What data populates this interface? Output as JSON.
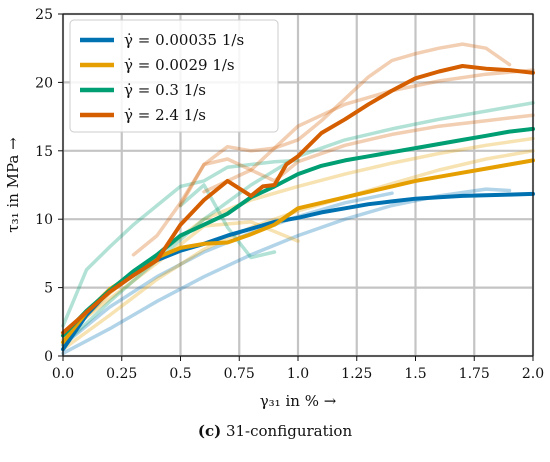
{
  "caption": {
    "letter": "(c)",
    "text": "31-configuration"
  },
  "chart_data": {
    "type": "line",
    "title": "",
    "xlabel": "γ₃₁ in % →",
    "ylabel": "τ₃₁ in MPa →",
    "xlim": [
      0,
      2.0
    ],
    "ylim": [
      0,
      25
    ],
    "xticks": [
      0.0,
      0.25,
      0.5,
      0.75,
      1.0,
      1.25,
      1.5,
      1.75,
      2.0
    ],
    "xtick_labels": [
      "0.0",
      "0.25",
      "0.5",
      "0.75",
      "1.0",
      "1.25",
      "1.5",
      "1.75",
      "2.0"
    ],
    "yticks": [
      0,
      5,
      10,
      15,
      20,
      25
    ],
    "ytick_labels": [
      "0",
      "5",
      "10",
      "15",
      "20",
      "25"
    ],
    "grid": true,
    "legend_position": "top-left",
    "series": [
      {
        "name": "γ̇ = 0.00035 1/s",
        "color": "#0072b2",
        "x": [
          0,
          0.1,
          0.2,
          0.3,
          0.4,
          0.5,
          0.6,
          0.7,
          0.8,
          0.9,
          1.0,
          1.1,
          1.2,
          1.3,
          1.4,
          1.5,
          1.6,
          1.7,
          1.8,
          1.9,
          2.0
        ],
        "y": [
          0.5,
          3.0,
          4.8,
          6.0,
          7.0,
          7.7,
          8.2,
          8.8,
          9.3,
          9.8,
          10.1,
          10.5,
          10.8,
          11.1,
          11.3,
          11.5,
          11.6,
          11.7,
          11.75,
          11.8,
          11.85
        ],
        "replicates": [
          {
            "x": [
              0,
              0.2,
              0.4,
              0.6,
              0.8,
              1.0,
              1.2,
              1.4,
              1.6,
              1.8,
              1.9
            ],
            "y": [
              0.2,
              2.0,
              4.0,
              5.8,
              7.4,
              8.8,
              10.0,
              11.0,
              11.7,
              12.2,
              12.1
            ]
          },
          {
            "x": [
              0,
              0.2,
              0.4,
              0.6,
              0.8,
              1.0,
              1.2,
              1.4
            ],
            "y": [
              0.8,
              3.6,
              5.8,
              7.6,
              9.0,
              10.2,
              11.2,
              11.9
            ]
          }
        ]
      },
      {
        "name": "γ̇ = 0.0029 1/s",
        "color": "#e69f00",
        "x": [
          0,
          0.1,
          0.2,
          0.3,
          0.4,
          0.5,
          0.6,
          0.7,
          0.8,
          0.9,
          1.0,
          1.1,
          1.2,
          1.3,
          1.4,
          1.5,
          1.6,
          1.7,
          1.8,
          1.9,
          2.0
        ],
        "y": [
          1.0,
          3.2,
          4.9,
          6.0,
          7.2,
          7.9,
          8.2,
          8.3,
          8.9,
          9.6,
          10.8,
          11.2,
          11.6,
          12.0,
          12.4,
          12.8,
          13.1,
          13.4,
          13.7,
          14.0,
          14.3
        ],
        "replicates": [
          {
            "x": [
              0,
              0.2,
              0.4,
              0.6,
              0.8,
              1.0,
              1.2,
              1.4,
              1.6,
              1.8,
              2.0
            ],
            "y": [
              1.2,
              4.6,
              7.4,
              10.0,
              11.4,
              12.4,
              13.3,
              14.1,
              14.8,
              15.4,
              15.9
            ]
          },
          {
            "x": [
              0,
              0.2,
              0.4,
              0.6,
              0.8,
              1.0
            ],
            "y": [
              1.5,
              4.2,
              6.8,
              9.5,
              9.8,
              8.4
            ]
          },
          {
            "x": [
              0,
              0.2,
              0.4,
              0.6,
              0.8,
              1.0,
              1.2,
              1.4,
              1.6,
              1.8,
              2.0
            ],
            "y": [
              0.5,
              3.0,
              5.6,
              7.8,
              9.4,
              10.6,
              11.6,
              12.6,
              13.6,
              14.4,
              15.0
            ]
          }
        ]
      },
      {
        "name": "γ̇ = 0.3 1/s",
        "color": "#009e73",
        "x": [
          0,
          0.1,
          0.2,
          0.3,
          0.4,
          0.5,
          0.6,
          0.7,
          0.8,
          0.9,
          1.0,
          1.1,
          1.2,
          1.3,
          1.4,
          1.5,
          1.6,
          1.7,
          1.8,
          1.9,
          2.0
        ],
        "y": [
          1.5,
          3.3,
          4.8,
          6.2,
          7.4,
          8.8,
          9.6,
          10.4,
          11.6,
          12.4,
          13.3,
          13.9,
          14.3,
          14.6,
          14.9,
          15.2,
          15.5,
          15.8,
          16.1,
          16.4,
          16.6
        ],
        "replicates": [
          {
            "x": [
              0,
              0.1,
              0.2,
              0.3,
              0.4,
              0.5,
              0.6,
              0.7,
              0.8,
              0.9,
              1.0
            ],
            "y": [
              2.2,
              6.3,
              8.0,
              9.6,
              11.0,
              12.4,
              12.8,
              13.8,
              14.0,
              14.2,
              14.3
            ]
          },
          {
            "x": [
              0,
              0.2,
              0.4,
              0.6,
              0.8,
              1.0,
              1.2,
              1.4,
              1.6,
              1.8,
              2.0
            ],
            "y": [
              0.8,
              4.0,
              7.0,
              10.0,
              12.5,
              14.6,
              15.8,
              16.6,
              17.3,
              17.9,
              18.5
            ]
          },
          {
            "x": [
              0.5,
              0.6,
              0.7,
              0.8,
              0.9
            ],
            "y": [
              11.0,
              12.5,
              9.4,
              7.2,
              7.6
            ]
          }
        ]
      },
      {
        "name": "γ̇ = 2.4 1/s",
        "color": "#d55e00",
        "x": [
          0,
          0.1,
          0.2,
          0.3,
          0.4,
          0.5,
          0.6,
          0.7,
          0.8,
          0.85,
          0.9,
          0.95,
          1.0,
          1.1,
          1.2,
          1.3,
          1.4,
          1.5,
          1.6,
          1.7,
          1.8,
          1.9,
          2.0
        ],
        "y": [
          1.7,
          3.2,
          4.7,
          5.9,
          7.0,
          9.6,
          11.4,
          12.8,
          11.7,
          12.4,
          12.5,
          14.0,
          14.6,
          16.3,
          17.3,
          18.4,
          19.4,
          20.3,
          20.8,
          21.2,
          21.0,
          20.9,
          20.7
        ],
        "replicates": [
          {
            "x": [
              0.5,
              0.6,
              0.7,
              0.8,
              0.9,
              1.0,
              1.1,
              1.2,
              1.3,
              1.4,
              1.5,
              1.6,
              1.7,
              1.8,
              1.9
            ],
            "y": [
              11.0,
              14.0,
              15.3,
              15.0,
              15.2,
              15.8,
              17.2,
              18.8,
              20.4,
              21.6,
              22.1,
              22.5,
              22.8,
              22.5,
              21.3
            ]
          },
          {
            "x": [
              0.6,
              0.8,
              1.0,
              1.2,
              1.4,
              1.6,
              1.8,
              2.0
            ],
            "y": [
              12.0,
              13.6,
              16.8,
              18.4,
              19.4,
              20.1,
              20.6,
              20.9
            ]
          },
          {
            "x": [
              0.3,
              0.4,
              0.5,
              0.6,
              0.7,
              0.8,
              0.9,
              1.0,
              1.2,
              1.4,
              1.6,
              1.8,
              2.0
            ],
            "y": [
              7.4,
              8.8,
              11.2,
              14.0,
              14.4,
              13.6,
              12.8,
              14.2,
              15.4,
              16.2,
              16.8,
              17.2,
              17.6
            ]
          }
        ]
      }
    ]
  }
}
